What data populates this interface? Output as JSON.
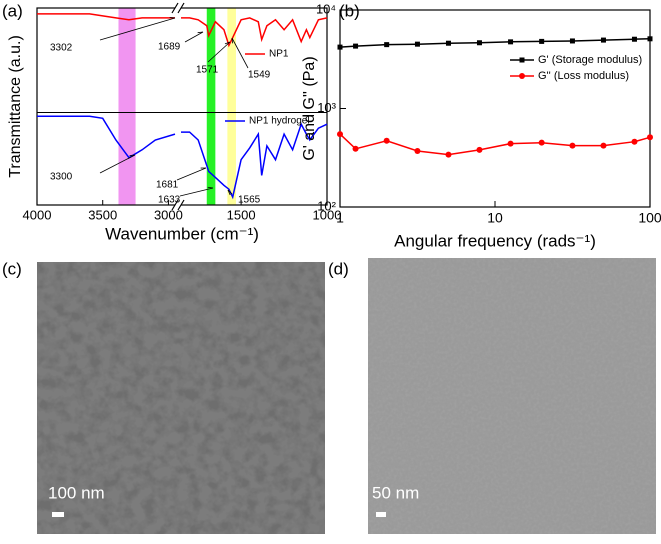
{
  "chart_data": [
    {
      "type": "line",
      "panel_label": "(a)",
      "xlabel": "Wavenumber (cm⁻¹)",
      "ylabel": "Transmittance (a.u.)",
      "xlim": [
        4000,
        1000
      ],
      "x_break": [
        2950,
        1850
      ],
      "xticks": [
        4000,
        3500,
        3000,
        1500,
        1000
      ],
      "ylim": [
        0,
        100
      ],
      "x": [
        4000,
        3800,
        3600,
        3500,
        3400,
        3300,
        3200,
        3100,
        2950,
        2500,
        1850,
        1800,
        1750,
        1700,
        1689,
        1650,
        1600,
        1571,
        1549,
        1500,
        1450,
        1400,
        1380,
        1350,
        1300,
        1250,
        1200,
        1150,
        1120,
        1100,
        1050,
        1000
      ],
      "series": [
        {
          "name": "NP1",
          "color": "#ff0000",
          "values": [
            97,
            97,
            97,
            96,
            95,
            94,
            95,
            95,
            95,
            null,
            95,
            95,
            94,
            91,
            86,
            93,
            89,
            81,
            85,
            94,
            95,
            93,
            84,
            91,
            94,
            89,
            94,
            83,
            89,
            85,
            94,
            95
          ]
        },
        {
          "name": "NP1  hydrogel",
          "color": "#0000ff",
          "values": [
            45,
            45,
            45,
            44,
            33,
            24,
            28,
            33,
            36,
            null,
            37,
            37,
            33,
            20,
            17,
            14,
            10,
            8,
            4,
            23,
            29,
            36,
            15,
            30,
            23,
            36,
            28,
            41,
            36,
            33,
            39,
            41
          ]
        }
      ],
      "bands": [
        {
          "from": 3380,
          "to": 3250,
          "color": "#ee82ee"
        },
        {
          "from": 1700,
          "to": 1650,
          "color": "#00ee00"
        },
        {
          "from": 1580,
          "to": 1530,
          "color": "#ffff88"
        }
      ],
      "annotations": [
        "3302",
        "1689",
        "1571",
        "1549",
        "3300",
        "1681",
        "1633",
        "1565"
      ]
    },
    {
      "type": "line",
      "panel_label": "(b)",
      "xlabel": "Angular frequency (rads⁻¹)",
      "ylabel": "G' and G'' (Pa)",
      "log_scale": true,
      "xlim": [
        1,
        100
      ],
      "ylim": [
        100,
        10000
      ],
      "xticks": [
        1,
        10,
        100
      ],
      "yticks": [
        {
          "value": 100,
          "label": "10²"
        },
        {
          "value": 1000,
          "label": "10³"
        },
        {
          "value": 10000,
          "label": "10⁴"
        }
      ],
      "x": [
        1,
        1.26,
        2,
        3.16,
        5.01,
        7.94,
        12.6,
        20,
        31.6,
        50.1,
        79.4,
        100
      ],
      "series": [
        {
          "name": "G' (Storage modulus)",
          "color": "#000000",
          "marker": "square",
          "values": [
            4200,
            4300,
            4450,
            4500,
            4600,
            4650,
            4750,
            4800,
            4850,
            4950,
            5050,
            5100
          ]
        },
        {
          "name": "G'' (Loss modulus)",
          "color": "#ff0000",
          "marker": "circle",
          "values": [
            550,
            390,
            470,
            370,
            340,
            380,
            440,
            450,
            420,
            420,
            460,
            510
          ]
        }
      ]
    }
  ],
  "images": [
    {
      "panel_label": "(c)",
      "scale_bar": "100 nm"
    },
    {
      "panel_label": "(d)",
      "scale_bar": "50 nm"
    }
  ]
}
